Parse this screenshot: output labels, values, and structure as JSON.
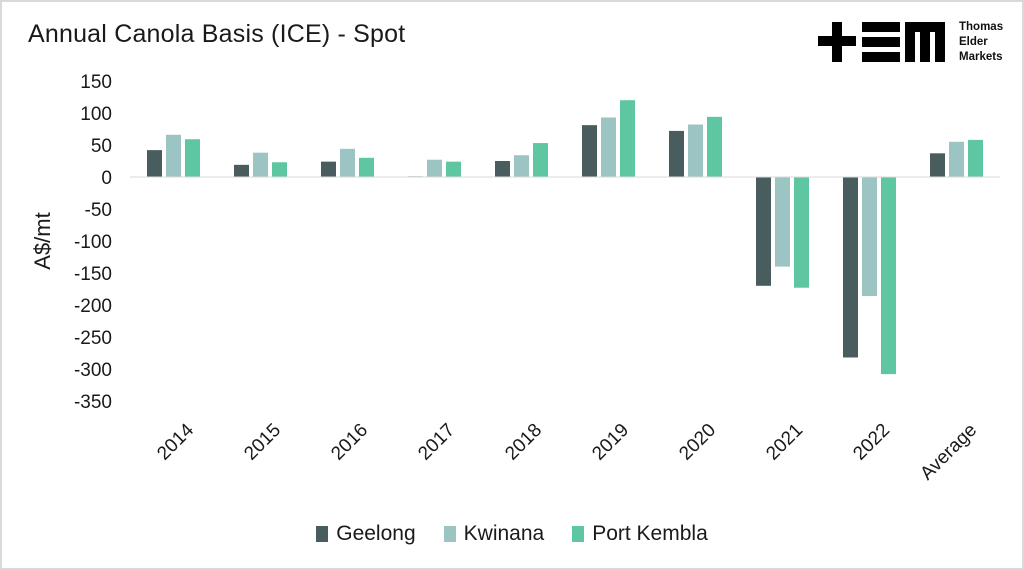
{
  "chart_data": {
    "type": "bar",
    "title": "Annual Canola Basis (ICE) - Spot",
    "ylabel": "A$/mt",
    "xlabel": "",
    "categories": [
      "2014",
      "2015",
      "2016",
      "2017",
      "2018",
      "2019",
      "2020",
      "2021",
      "2022",
      "Average"
    ],
    "series": [
      {
        "name": "Geelong",
        "color": "#4a5d5e",
        "values": [
          42,
          19,
          24,
          1,
          25,
          81,
          72,
          -170,
          -282,
          37
        ]
      },
      {
        "name": "Kwinana",
        "color": "#9bc4c2",
        "values": [
          66,
          38,
          44,
          27,
          34,
          93,
          82,
          -140,
          -186,
          55
        ]
      },
      {
        "name": "Port Kembla",
        "color": "#5ec6a0",
        "values": [
          59,
          23,
          30,
          24,
          53,
          120,
          94,
          -173,
          -308,
          58
        ]
      }
    ],
    "ylim": [
      -350,
      150
    ],
    "yticks": [
      150,
      100,
      50,
      0,
      -50,
      -100,
      -150,
      -200,
      -250,
      -300,
      -350
    ],
    "ytick_labels": [
      "150",
      "100",
      "50",
      "0",
      "-50",
      "-100",
      "-150",
      "-200",
      "-250",
      "-300",
      "-350"
    ],
    "grid": false,
    "legend_position": "bottom"
  },
  "logo": {
    "line1": "Thomas",
    "line2": "Elder",
    "line3": "Markets"
  }
}
